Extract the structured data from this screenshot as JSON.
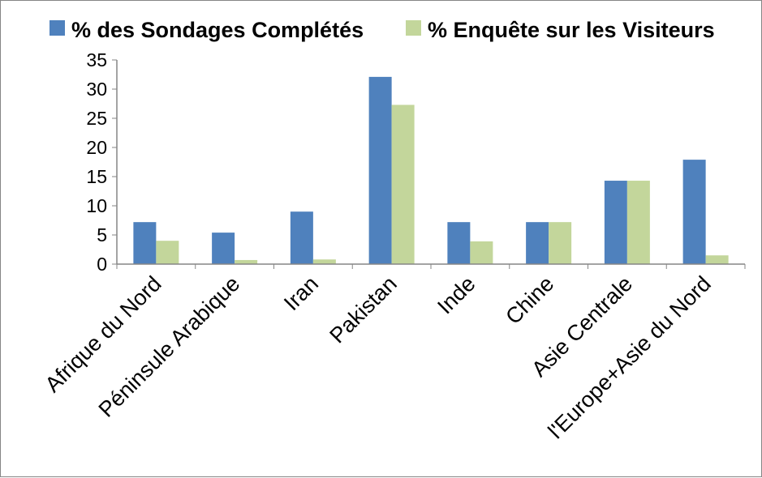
{
  "chart_data": {
    "type": "bar",
    "categories": [
      "Afrique du Nord",
      "Péninsule Arabique",
      "Iran",
      "Pakistan",
      "Inde",
      "Chine",
      "Asie Centrale",
      "l'Europe+Asie du Nord"
    ],
    "series": [
      {
        "name": "% des Sondages Complétés",
        "color": "#4f81bd",
        "values": [
          7.2,
          5.4,
          9.0,
          32.1,
          7.2,
          7.2,
          14.3,
          17.9
        ]
      },
      {
        "name": "% Enquête sur les Visiteurs",
        "color": "#c3d69b",
        "values": [
          4.0,
          0.7,
          0.8,
          27.3,
          3.9,
          7.2,
          14.3,
          1.5
        ]
      }
    ],
    "yticks": [
      "0",
      "5",
      "10",
      "15",
      "20",
      "25",
      "30",
      "35"
    ],
    "ylim": [
      0,
      35
    ],
    "ymajor": 5,
    "grid": false,
    "legend_position": "top",
    "title": "",
    "xlabel": "",
    "ylabel": ""
  }
}
